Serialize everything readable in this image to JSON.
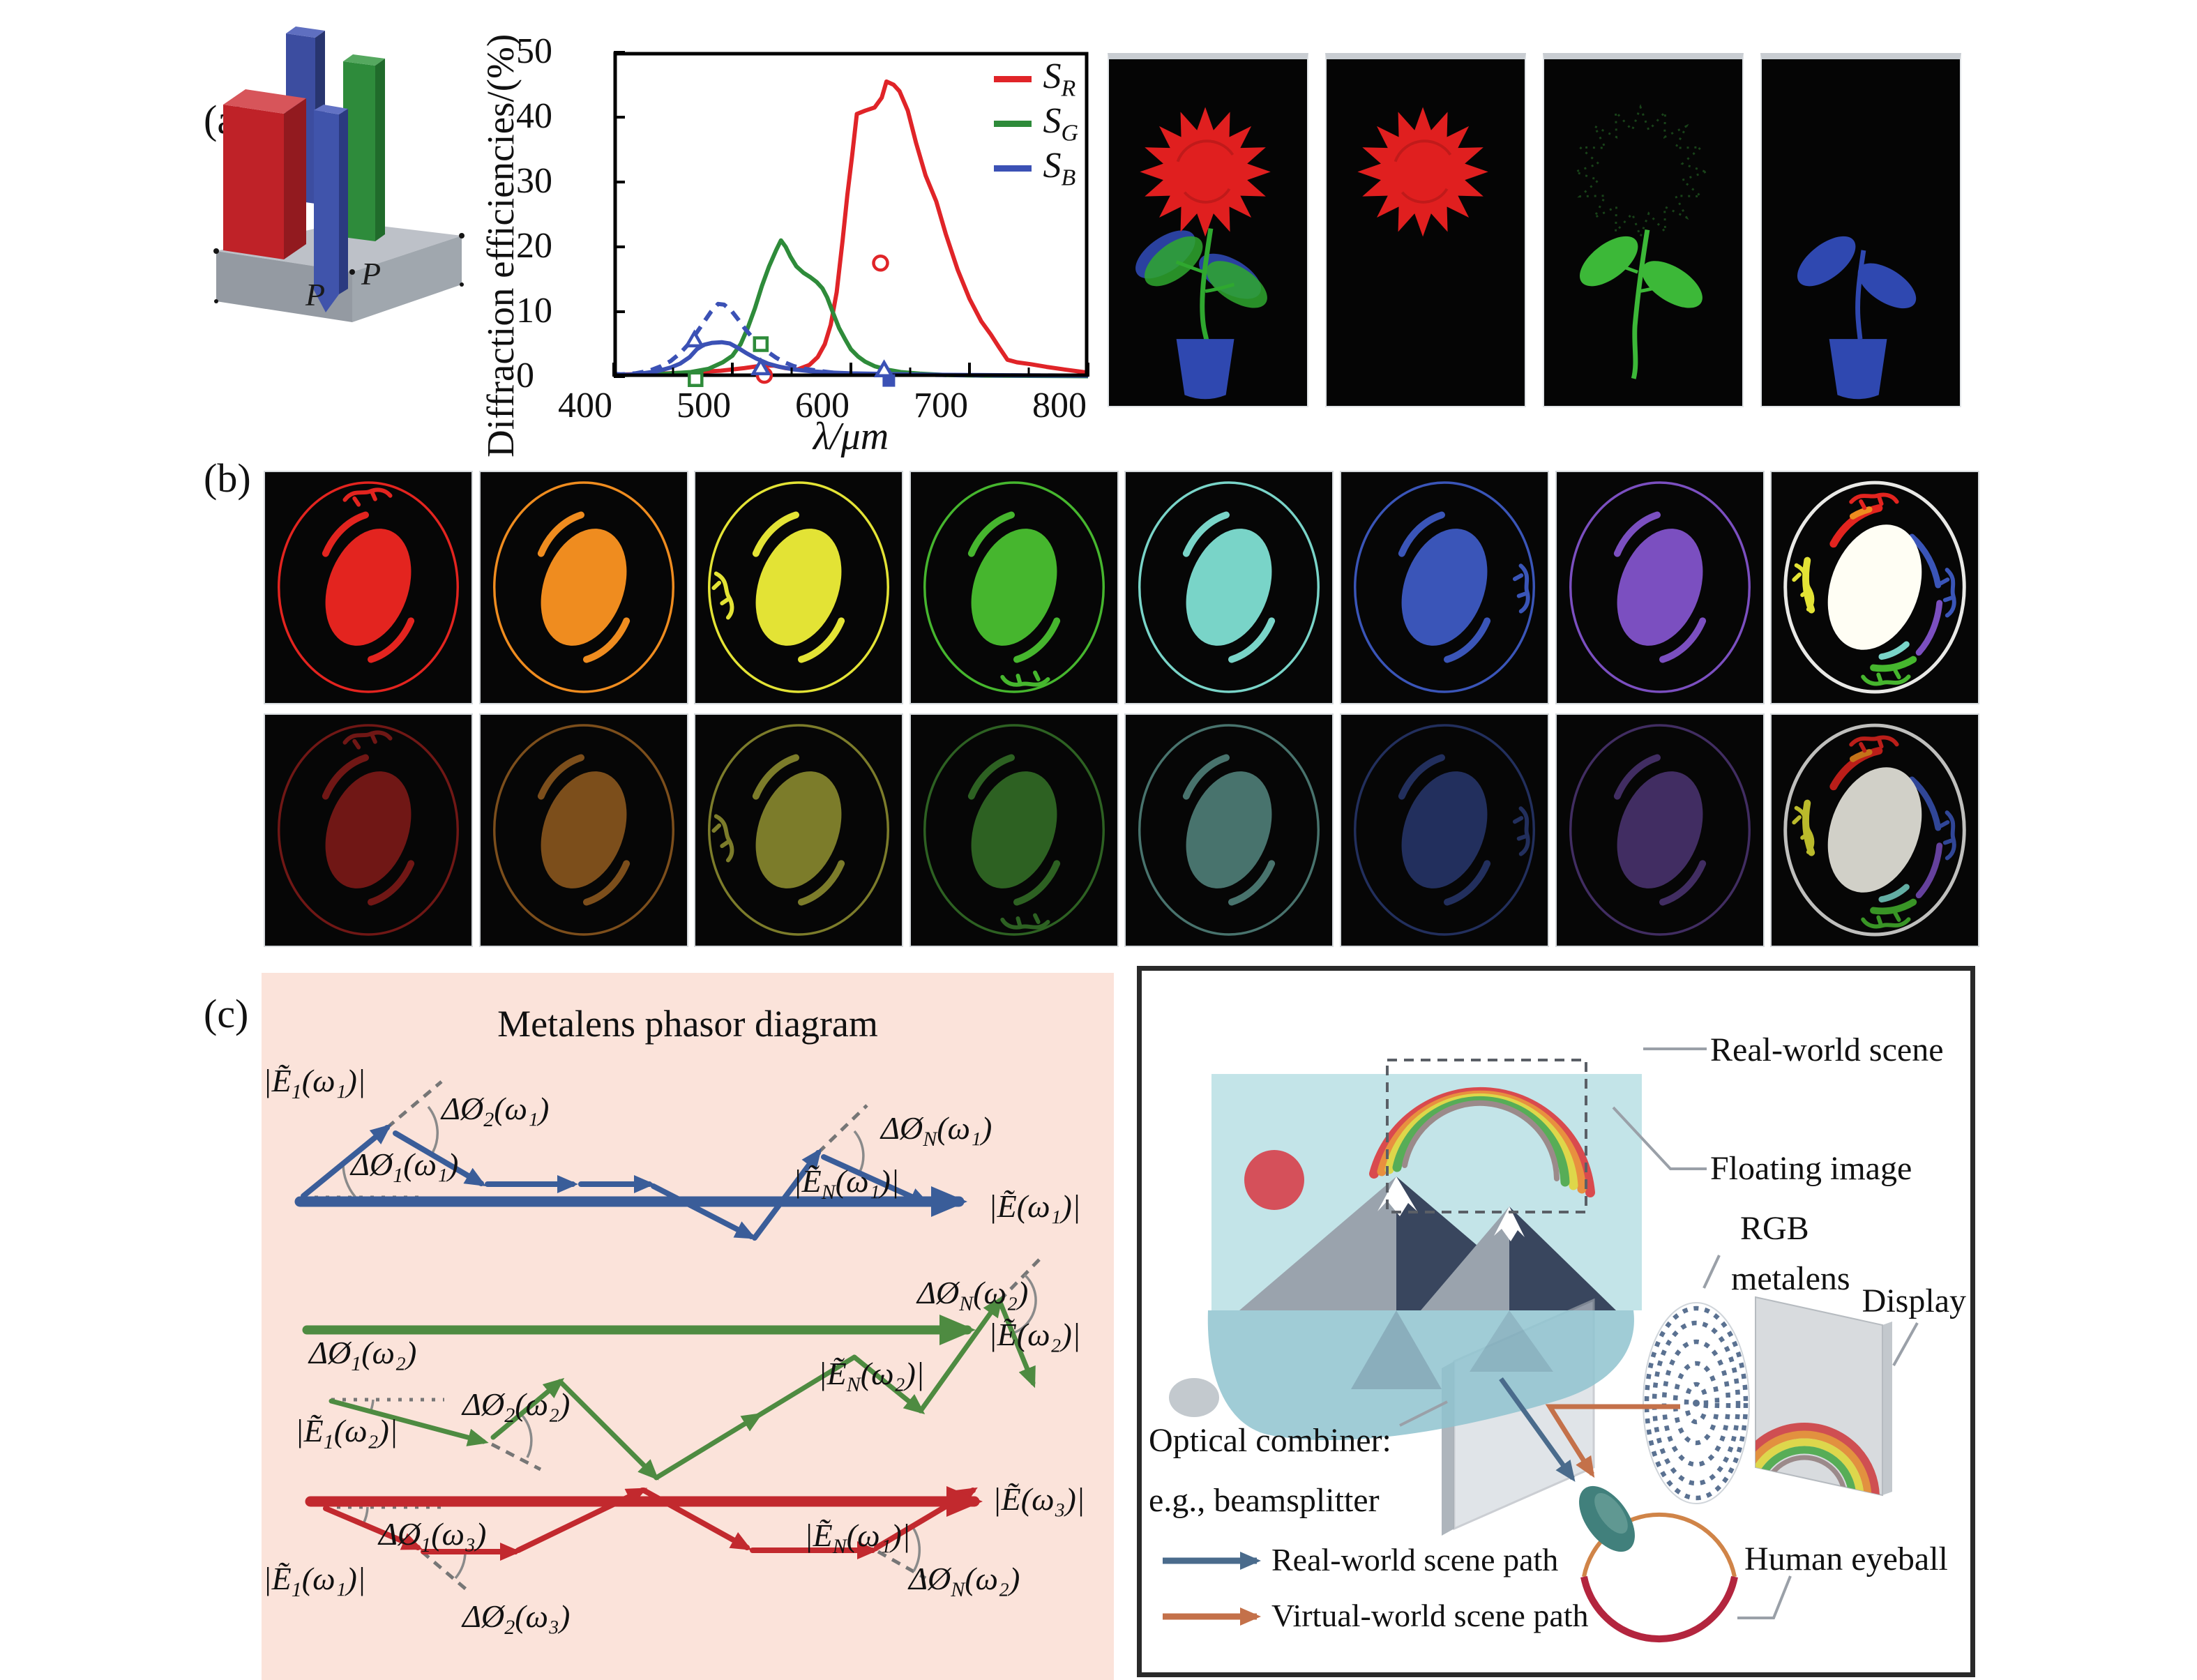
{
  "panel_labels": {
    "a": "(a)",
    "b": "(b)",
    "c": "(c)"
  },
  "panel_a": {
    "schematic": {
      "label_p1": "P",
      "label_p2": "P",
      "pillar_colors": {
        "red": "#bf2228",
        "blue": "#3c4da0",
        "green": "#2e8b3b",
        "slab": "#a9aeb5"
      }
    },
    "flower_colors": {
      "red": "#e01f1f",
      "green": "#2fa82f",
      "green_faint": "#1c4a1c",
      "blue": "#2f48b0"
    }
  },
  "chart_data": {
    "type": "line",
    "title": "",
    "xlabel": "λ/μm",
    "ylabel": "Diffraction efficiencies/(%)",
    "xlim": [
      400,
      800
    ],
    "ylim": [
      0,
      50
    ],
    "xticks": [
      400,
      500,
      600,
      700,
      800
    ],
    "xticks_minor": [
      450,
      550,
      650,
      750
    ],
    "yticks": [
      0,
      10,
      20,
      30,
      40,
      50
    ],
    "grid": false,
    "legend_position": "top-right",
    "legend": [
      {
        "main": "S",
        "sub": "R",
        "color": "#e02428"
      },
      {
        "main": "S",
        "sub": "G",
        "color": "#2e8b3a"
      },
      {
        "main": "S",
        "sub": "B",
        "color": "#3b51b5"
      }
    ],
    "series": [
      {
        "name": "S_R",
        "color": "#e02428",
        "style": "solid",
        "points": [
          [
            400,
            0.3
          ],
          [
            430,
            0.4
          ],
          [
            460,
            0.6
          ],
          [
            490,
            0.9
          ],
          [
            510,
            1.3
          ],
          [
            525,
            1.7
          ],
          [
            535,
            1.7
          ],
          [
            545,
            1.3
          ],
          [
            555,
            1.1
          ],
          [
            565,
            1.8
          ],
          [
            572,
            3
          ],
          [
            578,
            5
          ],
          [
            583,
            8
          ],
          [
            588,
            13
          ],
          [
            593,
            21
          ],
          [
            597,
            28
          ],
          [
            601,
            34
          ],
          [
            605,
            40.5
          ],
          [
            612,
            41
          ],
          [
            620,
            41.5
          ],
          [
            626,
            43
          ],
          [
            630,
            45.5
          ],
          [
            636,
            45
          ],
          [
            641,
            44
          ],
          [
            648,
            41
          ],
          [
            655,
            36
          ],
          [
            663,
            31
          ],
          [
            672,
            27
          ],
          [
            680,
            22
          ],
          [
            690,
            16.5
          ],
          [
            700,
            12
          ],
          [
            710,
            8.5
          ],
          [
            718,
            6.5
          ],
          [
            725,
            4.5
          ],
          [
            732,
            2.6
          ],
          [
            740,
            2.2
          ],
          [
            752,
            1.9
          ],
          [
            765,
            1.5
          ],
          [
            780,
            1.1
          ],
          [
            800,
            0.6
          ]
        ]
      },
      {
        "name": "S_G",
        "color": "#2e8b3a",
        "style": "solid",
        "points": [
          [
            400,
            0.2
          ],
          [
            440,
            0.4
          ],
          [
            465,
            0.7
          ],
          [
            480,
            1.2
          ],
          [
            492,
            2.2
          ],
          [
            500,
            3.2
          ],
          [
            507,
            5
          ],
          [
            513,
            7.5
          ],
          [
            519,
            10.5
          ],
          [
            525,
            14
          ],
          [
            531,
            17
          ],
          [
            537,
            19.5
          ],
          [
            541,
            21
          ],
          [
            545,
            20
          ],
          [
            549,
            18.5
          ],
          [
            554,
            17
          ],
          [
            560,
            16
          ],
          [
            566,
            15.3
          ],
          [
            571,
            14.6
          ],
          [
            576,
            13.6
          ],
          [
            580,
            12.2
          ],
          [
            585,
            9.8
          ],
          [
            590,
            7.5
          ],
          [
            595,
            5.8
          ],
          [
            600,
            4.2
          ],
          [
            606,
            3.1
          ],
          [
            612,
            2.3
          ],
          [
            620,
            1.6
          ],
          [
            630,
            1.1
          ],
          [
            642,
            0.7
          ],
          [
            658,
            0.45
          ],
          [
            680,
            0.25
          ],
          [
            710,
            0.15
          ],
          [
            800,
            0.05
          ]
        ]
      },
      {
        "name": "S_B",
        "color": "#3b51b5",
        "style": "solid",
        "points": [
          [
            400,
            0.4
          ],
          [
            412,
            0.3
          ],
          [
            424,
            0.5
          ],
          [
            436,
            0.8
          ],
          [
            448,
            1.4
          ],
          [
            456,
            2
          ],
          [
            464,
            3
          ],
          [
            470,
            4.2
          ],
          [
            476,
            4.9
          ],
          [
            483,
            5.2
          ],
          [
            491,
            5.3
          ],
          [
            498,
            5.1
          ],
          [
            505,
            4.4
          ],
          [
            512,
            3.6
          ],
          [
            520,
            2.8
          ],
          [
            530,
            2
          ],
          [
            540,
            1.5
          ],
          [
            552,
            1.1
          ],
          [
            565,
            0.85
          ],
          [
            580,
            0.65
          ],
          [
            600,
            0.5
          ],
          [
            630,
            0.4
          ],
          [
            660,
            0.3
          ],
          [
            700,
            0.25
          ],
          [
            750,
            0.18
          ],
          [
            800,
            0.15
          ]
        ]
      },
      {
        "name": "S_B_dashed",
        "color": "#3b51b5",
        "style": "dashed",
        "points": [
          [
            400,
            0.25
          ],
          [
            418,
            0.5
          ],
          [
            430,
            0.9
          ],
          [
            440,
            1.6
          ],
          [
            448,
            2.4
          ],
          [
            456,
            3.6
          ],
          [
            463,
            5
          ],
          [
            470,
            6.8
          ],
          [
            476,
            8.4
          ],
          [
            482,
            10
          ],
          [
            488,
            11.2
          ],
          [
            493,
            11.1
          ],
          [
            499,
            10.2
          ],
          [
            505,
            8.8
          ],
          [
            511,
            7.3
          ],
          [
            517,
            6
          ],
          [
            523,
            4.9
          ],
          [
            530,
            3.8
          ],
          [
            537,
            2.9
          ],
          [
            544,
            2.2
          ],
          [
            552,
            1.6
          ],
          [
            561,
            1.2
          ],
          [
            572,
            0.9
          ],
          [
            585,
            0.6
          ],
          [
            600,
            0.45
          ],
          [
            625,
            0.35
          ],
          [
            660,
            0.28
          ],
          [
            700,
            0.2
          ],
          [
            800,
            0.15
          ]
        ]
      }
    ],
    "markers": [
      {
        "shape": "circle-open",
        "color": "#e02428",
        "points": [
          [
            625,
            17.5
          ],
          [
            527,
            0.2
          ]
        ]
      },
      {
        "shape": "square-open",
        "color": "#2e8b3a",
        "points": [
          [
            524,
            5
          ],
          [
            469,
            -0.4
          ]
        ]
      },
      {
        "shape": "triangle-open",
        "color": "#3b51b5",
        "points": [
          [
            468,
            5.6
          ],
          [
            524,
            1.3
          ],
          [
            628,
            1.0
          ]
        ]
      },
      {
        "shape": "square-filled",
        "color": "#3b51b5",
        "points": [
          [
            632,
            -0.6
          ]
        ]
      }
    ]
  },
  "panel_b": {
    "rows": [
      {
        "name": "row-1",
        "dim": false
      },
      {
        "name": "row-2",
        "dim": true
      }
    ],
    "columns": [
      {
        "name": "red",
        "color": "#e3241f"
      },
      {
        "name": "orange",
        "color": "#ef8c1f"
      },
      {
        "name": "yellow",
        "color": "#e3e335"
      },
      {
        "name": "green",
        "color": "#46b62e"
      },
      {
        "name": "cyan",
        "color": "#79d4c8"
      },
      {
        "name": "blue",
        "color": "#3a55b8"
      },
      {
        "name": "purple",
        "color": "#7b4fc0"
      },
      {
        "name": "white",
        "color": "#f2f2ea",
        "multicolor": true
      }
    ]
  },
  "panel_c": {
    "phasor": {
      "title": "Metalens phasor diagram",
      "bg": "#fbe3da",
      "blue": {
        "color": "#3a5d99",
        "labels": {
          "e1": {
            "pre": "|Ẽ",
            "sub": "1",
            "post": "(ω₁)|"
          },
          "dphi1": {
            "pre": "ΔØ",
            "sub": "1",
            "post": "(ω₁)"
          },
          "dphi2": {
            "pre": "ΔØ",
            "sub": "2",
            "post": "(ω₁)"
          },
          "dphiN": {
            "pre": "ΔØ",
            "sub": "N",
            "post": "(ω₁)"
          },
          "eN": {
            "pre": "|Ẽ",
            "sub": "N",
            "post": "(ω₁)|"
          },
          "etot": {
            "pre": "|Ẽ",
            "sub": "",
            "post": "(ω₁)|"
          }
        }
      },
      "green": {
        "color": "#4e8b41",
        "labels": {
          "dphi1": {
            "pre": "ΔØ",
            "sub": "1",
            "post": "(ω₂)"
          },
          "e1": {
            "pre": "|Ẽ",
            "sub": "1",
            "post": "(ω₂)|"
          },
          "dphi2": {
            "pre": "ΔØ",
            "sub": "2",
            "post": "(ω₂)"
          },
          "dphiN": {
            "pre": "ΔØ",
            "sub": "N",
            "post": "(ω₂)"
          },
          "eN": {
            "pre": "|Ẽ",
            "sub": "N",
            "post": "(ω₂)|"
          },
          "etot": {
            "pre": "|Ẽ",
            "sub": "",
            "post": "(ω₂)|"
          }
        }
      },
      "red": {
        "color": "#c2292e",
        "labels": {
          "dphi1": {
            "pre": "ΔØ",
            "sub": "1",
            "post": "(ω₃)"
          },
          "e1": {
            "pre": "|Ẽ",
            "sub": "1",
            "post": "(ω₁)|"
          },
          "dphi2": {
            "pre": "ΔØ",
            "sub": "2",
            "post": "(ω₃)"
          },
          "dphiN": {
            "pre": "ΔØ",
            "sub": "N",
            "post": "(ω₂)"
          },
          "eN": {
            "pre": "|Ẽ",
            "sub": "N",
            "post": "(ω₁)|"
          },
          "etot": {
            "pre": "|Ẽ",
            "sub": "",
            "post": "(ω₃)|"
          }
        }
      }
    },
    "ar": {
      "labels": {
        "real_world": "Real-world scene",
        "floating": "Floating image",
        "rgb": "RGB",
        "metalens": "metalens",
        "display": "Display",
        "combiner1": "Optical combiner:",
        "combiner2": "e.g., beamsplitter",
        "real_path": "Real-world scene path",
        "virtual_path": "Virtual-world scene path",
        "eyeball": "Human eyeball"
      },
      "colors": {
        "sky": "#c3e4e8",
        "water": "#8fc3cf",
        "mountain_shadow": "#39465e",
        "mountain_lit": "#9aa3ad",
        "sun": "#d5505a",
        "real_path": "#4a6b8c",
        "virtual_path": "#c4714a"
      }
    }
  }
}
